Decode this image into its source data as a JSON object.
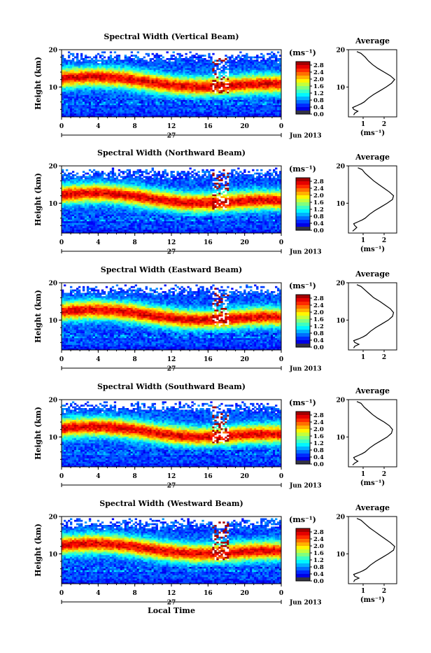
{
  "chart_data": [
    {
      "type": "heatmap",
      "title": "Spectral Width (Vertical Beam)",
      "ylabel": "Height (km)",
      "x_ticks": [
        "0",
        "4",
        "8",
        "12",
        "16",
        "20",
        "0"
      ],
      "y_ticks": [
        "20",
        "10"
      ],
      "date_day": "27",
      "date_month": "Jun 2013",
      "xlim": [
        0,
        24
      ],
      "ylim": [
        2,
        20
      ],
      "colorbar": {
        "unit": "(ms⁻¹)",
        "ticks": [
          "2.8",
          "2.4",
          "2.0",
          "1.6",
          "1.2",
          "0.8",
          "0.4",
          "0.0"
        ],
        "range": [
          0,
          3.0
        ]
      },
      "average": {
        "title": "Average",
        "xlabel": "(ms⁻¹)",
        "x_ticks": [
          "1",
          "2"
        ],
        "y_ticks": [
          "20",
          "10"
        ],
        "profile": [
          [
            0.55,
            2.5
          ],
          [
            0.6,
            3.0
          ],
          [
            0.75,
            3.5
          ],
          [
            0.55,
            4.0
          ],
          [
            0.5,
            4.5
          ],
          [
            0.7,
            5.0
          ],
          [
            0.9,
            5.5
          ],
          [
            1.05,
            6.0
          ],
          [
            1.25,
            7.0
          ],
          [
            1.5,
            8.0
          ],
          [
            1.8,
            9.0
          ],
          [
            2.1,
            10.0
          ],
          [
            2.35,
            11.0
          ],
          [
            2.5,
            12.0
          ],
          [
            2.3,
            13.0
          ],
          [
            2.0,
            14.0
          ],
          [
            1.7,
            15.0
          ],
          [
            1.45,
            16.0
          ],
          [
            1.25,
            17.0
          ],
          [
            1.1,
            18.0
          ],
          [
            0.9,
            19.0
          ],
          [
            0.7,
            19.5
          ]
        ]
      }
    },
    {
      "type": "heatmap",
      "title": "Spectral Width (Northward Beam)",
      "ylabel": "Height (km)",
      "x_ticks": [
        "0",
        "4",
        "8",
        "12",
        "16",
        "20",
        "0"
      ],
      "y_ticks": [
        "20",
        "10"
      ],
      "date_day": "27",
      "date_month": "Jun 2013",
      "xlim": [
        0,
        24
      ],
      "ylim": [
        2,
        20
      ],
      "colorbar": {
        "unit": "(ms⁻¹)",
        "ticks": [
          "2.8",
          "2.4",
          "2.0",
          "1.6",
          "1.2",
          "0.8",
          "0.4",
          "0.0"
        ],
        "range": [
          0,
          3.0
        ]
      },
      "average": {
        "title": "Average",
        "xlabel": "(ms⁻¹)",
        "x_ticks": [
          "1",
          "2"
        ],
        "y_ticks": [
          "20",
          "10"
        ],
        "profile": [
          [
            0.5,
            2.5
          ],
          [
            0.6,
            3.0
          ],
          [
            0.7,
            3.5
          ],
          [
            0.6,
            4.0
          ],
          [
            0.55,
            4.5
          ],
          [
            0.75,
            5.0
          ],
          [
            0.95,
            5.5
          ],
          [
            1.1,
            6.0
          ],
          [
            1.3,
            7.0
          ],
          [
            1.55,
            8.0
          ],
          [
            1.85,
            9.0
          ],
          [
            2.15,
            10.0
          ],
          [
            2.4,
            11.0
          ],
          [
            2.45,
            12.0
          ],
          [
            2.25,
            13.0
          ],
          [
            2.0,
            14.0
          ],
          [
            1.75,
            15.0
          ],
          [
            1.5,
            16.0
          ],
          [
            1.3,
            17.0
          ],
          [
            1.1,
            18.0
          ],
          [
            0.95,
            19.0
          ],
          [
            0.75,
            19.5
          ]
        ]
      }
    },
    {
      "type": "heatmap",
      "title": "Spectral Width (Eastward Beam)",
      "ylabel": "Height (km)",
      "x_ticks": [
        "0",
        "4",
        "8",
        "12",
        "16",
        "20",
        "0"
      ],
      "y_ticks": [
        "20",
        "10"
      ],
      "date_day": "27",
      "date_month": "Jun 2013",
      "xlim": [
        0,
        24
      ],
      "ylim": [
        2,
        20
      ],
      "colorbar": {
        "unit": "(ms⁻¹)",
        "ticks": [
          "2.8",
          "2.4",
          "2.0",
          "1.6",
          "1.2",
          "0.8",
          "0.4",
          "0.0"
        ],
        "range": [
          0,
          3.0
        ]
      },
      "average": {
        "title": "Average",
        "xlabel": "",
        "x_ticks": [
          "1",
          "2"
        ],
        "y_ticks": [
          "20",
          "10"
        ],
        "profile": [
          [
            0.55,
            2.5
          ],
          [
            0.6,
            3.0
          ],
          [
            0.8,
            3.5
          ],
          [
            0.6,
            4.0
          ],
          [
            0.55,
            4.5
          ],
          [
            0.8,
            5.0
          ],
          [
            1.0,
            5.5
          ],
          [
            1.15,
            6.0
          ],
          [
            1.35,
            7.0
          ],
          [
            1.6,
            8.0
          ],
          [
            1.9,
            9.0
          ],
          [
            2.2,
            10.0
          ],
          [
            2.4,
            11.0
          ],
          [
            2.45,
            12.0
          ],
          [
            2.3,
            13.0
          ],
          [
            2.05,
            14.0
          ],
          [
            1.8,
            15.0
          ],
          [
            1.5,
            16.0
          ],
          [
            1.3,
            17.0
          ],
          [
            1.1,
            18.0
          ],
          [
            0.9,
            19.0
          ],
          [
            0.7,
            19.5
          ]
        ]
      }
    },
    {
      "type": "heatmap",
      "title": "Spectral Width (Southward Beam)",
      "ylabel": "Height (km)",
      "x_ticks": [
        "0",
        "4",
        "8",
        "12",
        "16",
        "20",
        "0"
      ],
      "y_ticks": [
        "20",
        "10"
      ],
      "date_day": "27",
      "date_month": "Jun 2013",
      "xlim": [
        0,
        24
      ],
      "ylim": [
        2,
        20
      ],
      "colorbar": {
        "unit": "(ms⁻¹)",
        "ticks": [
          "2.8",
          "2.4",
          "2.0",
          "1.6",
          "1.2",
          "0.8",
          "0.4",
          "0.0"
        ],
        "range": [
          0,
          3.0
        ]
      },
      "average": {
        "title": "Average",
        "xlabel": "(ms⁻¹)",
        "x_ticks": [
          "1",
          "2"
        ],
        "y_ticks": [
          "20",
          "10"
        ],
        "profile": [
          [
            0.5,
            2.5
          ],
          [
            0.6,
            3.0
          ],
          [
            0.75,
            3.5
          ],
          [
            0.6,
            4.0
          ],
          [
            0.55,
            4.5
          ],
          [
            0.75,
            5.0
          ],
          [
            0.95,
            5.5
          ],
          [
            1.1,
            6.0
          ],
          [
            1.3,
            7.0
          ],
          [
            1.55,
            8.0
          ],
          [
            1.85,
            9.0
          ],
          [
            2.15,
            10.0
          ],
          [
            2.35,
            11.0
          ],
          [
            2.4,
            12.0
          ],
          [
            2.25,
            13.0
          ],
          [
            2.0,
            14.0
          ],
          [
            1.7,
            15.0
          ],
          [
            1.45,
            16.0
          ],
          [
            1.25,
            17.0
          ],
          [
            1.05,
            18.0
          ],
          [
            0.9,
            19.0
          ],
          [
            0.7,
            19.5
          ]
        ]
      }
    },
    {
      "type": "heatmap",
      "title": "Spectral Width (Westward Beam)",
      "ylabel": "Height (km)",
      "x_ticks": [
        "0",
        "4",
        "8",
        "12",
        "16",
        "20",
        "0"
      ],
      "y_ticks": [
        "20",
        "10"
      ],
      "date_day": "27",
      "date_month": "Jun 2013",
      "xlabel": "Local Time",
      "xlim": [
        0,
        24
      ],
      "ylim": [
        2,
        20
      ],
      "colorbar": {
        "unit": "(ms⁻¹)",
        "ticks": [
          "2.8",
          "2.4",
          "2.0",
          "1.6",
          "1.2",
          "0.8",
          "0.4",
          "0.0"
        ],
        "range": [
          0,
          3.0
        ]
      },
      "average": {
        "title": "Average",
        "xlabel": "(ms⁻¹)",
        "x_ticks": [
          "1",
          "2"
        ],
        "y_ticks": [
          "20",
          "10"
        ],
        "profile": [
          [
            0.55,
            2.5
          ],
          [
            0.6,
            3.0
          ],
          [
            0.8,
            3.5
          ],
          [
            0.6,
            4.0
          ],
          [
            0.55,
            4.5
          ],
          [
            0.8,
            5.0
          ],
          [
            1.0,
            5.5
          ],
          [
            1.15,
            6.0
          ],
          [
            1.35,
            7.0
          ],
          [
            1.6,
            8.0
          ],
          [
            1.9,
            9.0
          ],
          [
            2.2,
            10.0
          ],
          [
            2.45,
            11.0
          ],
          [
            2.5,
            12.0
          ],
          [
            2.3,
            13.0
          ],
          [
            2.05,
            14.0
          ],
          [
            1.8,
            15.0
          ],
          [
            1.55,
            16.0
          ],
          [
            1.3,
            17.0
          ],
          [
            1.1,
            18.0
          ],
          [
            0.9,
            19.0
          ],
          [
            0.7,
            19.5
          ]
        ]
      }
    }
  ]
}
